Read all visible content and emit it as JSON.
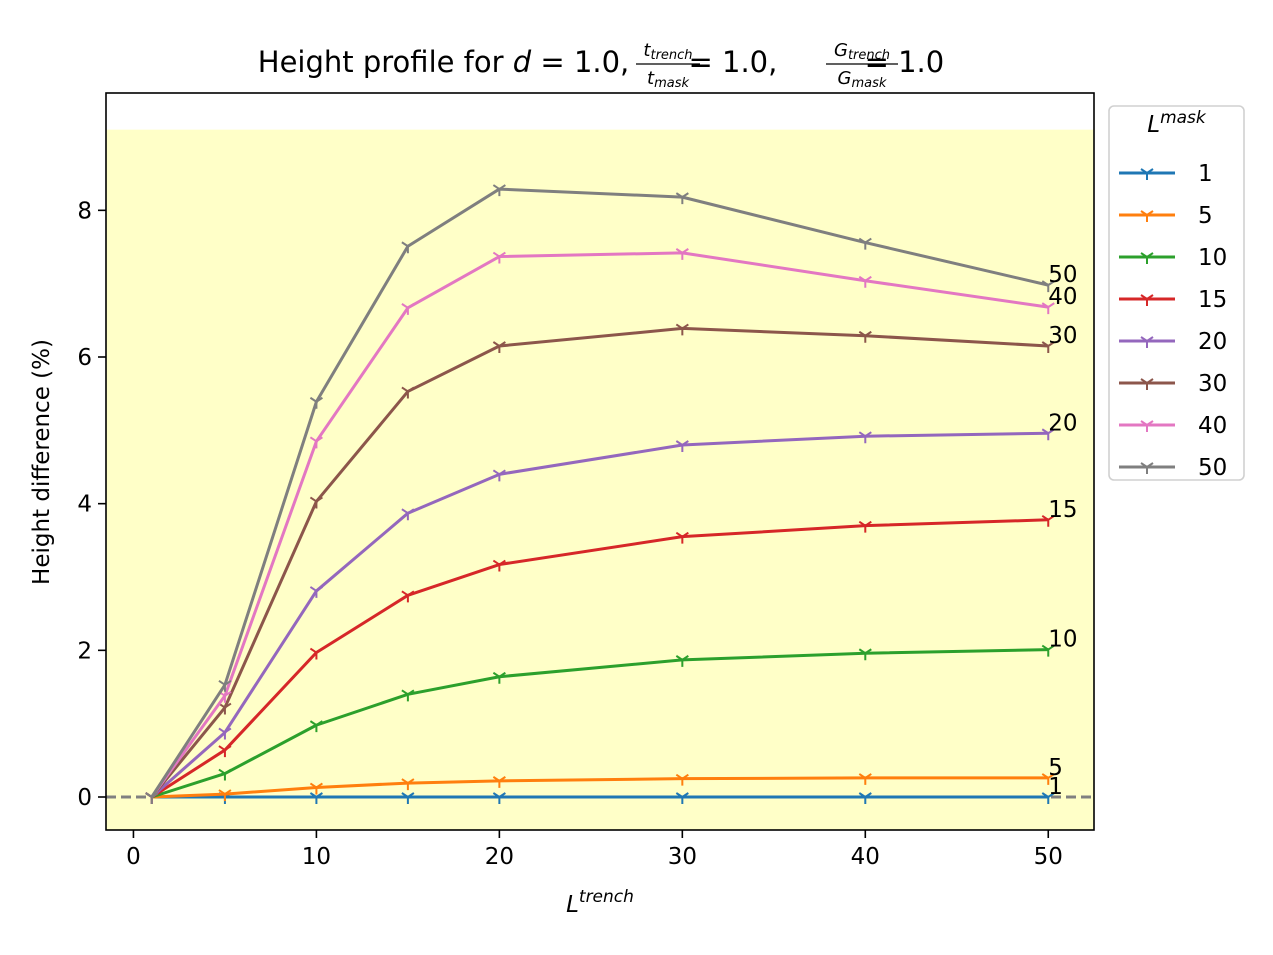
{
  "chart_data": {
    "type": "line",
    "title": {
      "prefix": "Height profile for ",
      "d_symbol": "d",
      "eq1": " = 1.0, ",
      "frac1_num": "t",
      "frac1_num_sub": "trench",
      "frac1_den": "t",
      "frac1_den_sub": "mask",
      "eq2": " = 1.0, ",
      "frac2_num": "G",
      "frac2_num_sub": "trench",
      "frac2_den": "G",
      "frac2_den_sub": "mask",
      "eq3": " = 1.0"
    },
    "xlabel": {
      "base": "L",
      "sup": "trench"
    },
    "ylabel": "Height difference (%)",
    "xlim": [
      -1.5,
      52.5
    ],
    "ylim": [
      -0.45,
      9.6
    ],
    "xticks": [
      0,
      10,
      20,
      30,
      40,
      50
    ],
    "yticks": [
      0,
      2,
      4,
      6,
      8
    ],
    "highlight_band": {
      "y0": -0.45,
      "y1": 9.1,
      "color": "#ffffc8"
    },
    "zero_line": {
      "y": 0,
      "color": "#808080",
      "style": "dashed"
    },
    "grid": false,
    "legend": {
      "title_base": "L",
      "title_sup": "mask",
      "placement": "outside-right-top"
    },
    "x": [
      1,
      5,
      10,
      15,
      20,
      30,
      40,
      50
    ],
    "series": [
      {
        "name": "1",
        "color": "#1f77b4",
        "values": [
          0,
          0,
          0,
          0,
          0,
          0,
          0,
          0
        ]
      },
      {
        "name": "5",
        "color": "#ff7f0e",
        "values": [
          0,
          0.04,
          0.13,
          0.19,
          0.22,
          0.25,
          0.26,
          0.26
        ]
      },
      {
        "name": "10",
        "color": "#2ca02c",
        "values": [
          0,
          0.32,
          0.98,
          1.4,
          1.64,
          1.87,
          1.96,
          2.01
        ]
      },
      {
        "name": "15",
        "color": "#d62728",
        "values": [
          0,
          0.64,
          1.97,
          2.75,
          3.17,
          3.55,
          3.7,
          3.78
        ]
      },
      {
        "name": "20",
        "color": "#9467bd",
        "values": [
          0,
          0.88,
          2.81,
          3.87,
          4.4,
          4.8,
          4.92,
          4.96
        ]
      },
      {
        "name": "30",
        "color": "#8c564b",
        "values": [
          0,
          1.22,
          4.03,
          5.53,
          6.15,
          6.39,
          6.29,
          6.15
        ]
      },
      {
        "name": "40",
        "color": "#e377c2",
        "values": [
          0,
          1.38,
          4.85,
          6.67,
          7.37,
          7.42,
          7.04,
          6.68
        ]
      },
      {
        "name": "50",
        "color": "#7f7f7f",
        "values": [
          0,
          1.53,
          5.39,
          7.51,
          8.29,
          8.18,
          7.56,
          6.98
        ]
      }
    ]
  }
}
